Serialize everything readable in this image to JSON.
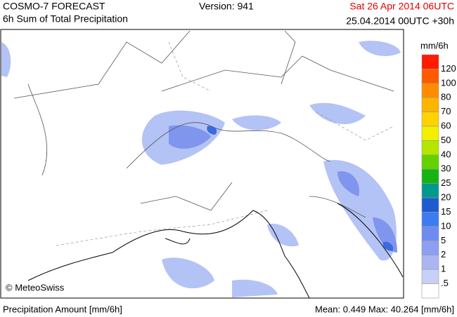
{
  "header": {
    "title": "COSMO-7 FORECAST",
    "subtitle": "6h Sum of Total Precipitation",
    "version": "Version: 941",
    "valid_time": "Sat 26 Apr 2014 06UTC",
    "run": "25.04.2014 00UTC +30h"
  },
  "map": {
    "credit": "© MeteoSwiss"
  },
  "legend": {
    "unit": "mm/6h",
    "labels": [
      "120",
      "100",
      "80",
      "70",
      "60",
      "50",
      "40",
      "30",
      "25",
      "20",
      "15",
      "10",
      "5",
      "2",
      "1",
      ".5"
    ],
    "colors": [
      "#ff1a00",
      "#ff5a00",
      "#ff8c00",
      "#ffb400",
      "#ffd200",
      "#f0f000",
      "#b4e600",
      "#64d200",
      "#14b414",
      "#009a8c",
      "#1e5ad2",
      "#3c7cf0",
      "#6e8cf0",
      "#8c9ff0",
      "#aab6f2",
      "#c8d0f8",
      "#ffffff"
    ]
  },
  "footer": {
    "left": "Precipitation Amount [mm/6h]",
    "stats": "Mean:  0.449 Max:  40.264 [mm/6h]"
  }
}
